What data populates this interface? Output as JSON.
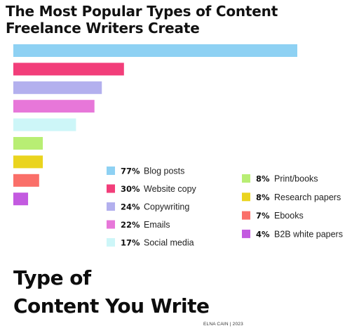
{
  "headline": "The Most Popular Types of Content Freelance Writers Create",
  "footer": {
    "title_line1": "Type of",
    "title_line2": "Content You Write",
    "credit": "ELNA CAIN | 2023"
  },
  "chart_data": {
    "type": "bar",
    "orientation": "horizontal",
    "title": "",
    "xlabel": "",
    "ylabel": "",
    "grid": false,
    "legend_placement": "bottom-right",
    "xlim": [
      0,
      77
    ],
    "categories": [
      "Blog posts",
      "Website copy",
      "Copywriting",
      "Emails",
      "Social media",
      "Print/books",
      "Research papers",
      "Ebooks",
      "B2B white papers"
    ],
    "values": [
      77,
      30,
      24,
      22,
      17,
      8,
      8,
      7,
      4
    ],
    "value_labels": [
      "77%",
      "30%",
      "24%",
      "22%",
      "17%",
      "8%",
      "8%",
      "7%",
      "4%"
    ],
    "colors": [
      "#8ed1f3",
      "#f23e7a",
      "#b3b0ee",
      "#e777d9",
      "#cdf6f8",
      "#b8ee74",
      "#ead41e",
      "#fa6f69",
      "#c35ae0"
    ]
  }
}
